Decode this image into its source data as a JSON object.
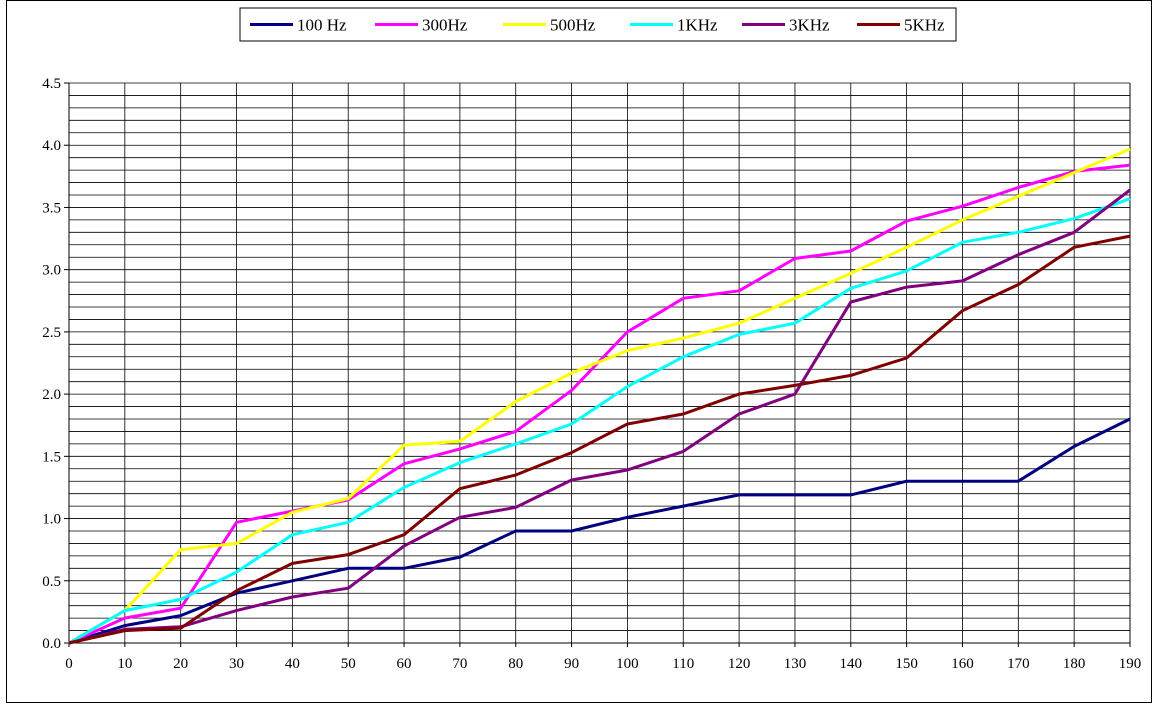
{
  "chart_data": {
    "type": "line",
    "title": "",
    "xlabel": "",
    "ylabel": "",
    "x": [
      0,
      10,
      20,
      30,
      40,
      50,
      60,
      70,
      80,
      90,
      100,
      110,
      120,
      130,
      140,
      150,
      160,
      170,
      180,
      190
    ],
    "x_tick_labels": [
      "0",
      "10",
      "20",
      "30",
      "40",
      "50",
      "60",
      "70",
      "80",
      "90",
      "100",
      "110",
      "120",
      "130",
      "140",
      "150",
      "160",
      "170",
      "180",
      "190"
    ],
    "y_tick_labels": [
      "0.0",
      "0.5",
      "1.0",
      "1.5",
      "2.0",
      "2.5",
      "3.0",
      "3.5",
      "4.0",
      "4.5"
    ],
    "xlim": [
      0,
      190
    ],
    "ylim": [
      0,
      4.5
    ],
    "grid": true,
    "legend_position": "top-center",
    "series": [
      {
        "name": "100 Hz",
        "color": "#000080",
        "values": [
          0,
          0.14,
          0.22,
          0.4,
          0.5,
          0.6,
          0.6,
          0.69,
          0.9,
          0.9,
          1.01,
          1.1,
          1.19,
          1.19,
          1.19,
          1.3,
          1.3,
          1.3,
          1.58,
          1.8
        ]
      },
      {
        "name": "300Hz",
        "color": "#ff00ff",
        "values": [
          0,
          0.2,
          0.28,
          0.97,
          1.06,
          1.15,
          1.44,
          1.56,
          1.7,
          2.03,
          2.5,
          2.77,
          2.83,
          3.09,
          3.15,
          3.39,
          3.51,
          3.66,
          3.79,
          3.84
        ]
      },
      {
        "name": "500Hz",
        "color": "#ffff00",
        "values": [
          0,
          0.26,
          0.75,
          0.8,
          1.05,
          1.16,
          1.59,
          1.62,
          1.94,
          2.17,
          2.35,
          2.45,
          2.57,
          2.77,
          2.97,
          3.18,
          3.4,
          3.59,
          3.78,
          3.97
        ]
      },
      {
        "name": "1KHz",
        "color": "#00ffff",
        "values": [
          0,
          0.26,
          0.35,
          0.57,
          0.87,
          0.97,
          1.25,
          1.45,
          1.6,
          1.76,
          2.06,
          2.3,
          2.48,
          2.57,
          2.85,
          2.99,
          3.22,
          3.3,
          3.41,
          3.57
        ]
      },
      {
        "name": "3KHz",
        "color": "#800080",
        "values": [
          0,
          0.11,
          0.13,
          0.26,
          0.37,
          0.44,
          0.78,
          1.01,
          1.09,
          1.31,
          1.39,
          1.54,
          1.84,
          2.0,
          2.74,
          2.86,
          2.91,
          3.12,
          3.3,
          3.64
        ]
      },
      {
        "name": "5KHz",
        "color": "#800000",
        "values": [
          0,
          0.1,
          0.12,
          0.42,
          0.64,
          0.71,
          0.87,
          1.24,
          1.35,
          1.53,
          1.76,
          1.84,
          2.0,
          2.07,
          2.15,
          2.29,
          2.67,
          2.88,
          3.18,
          3.27
        ]
      }
    ]
  }
}
